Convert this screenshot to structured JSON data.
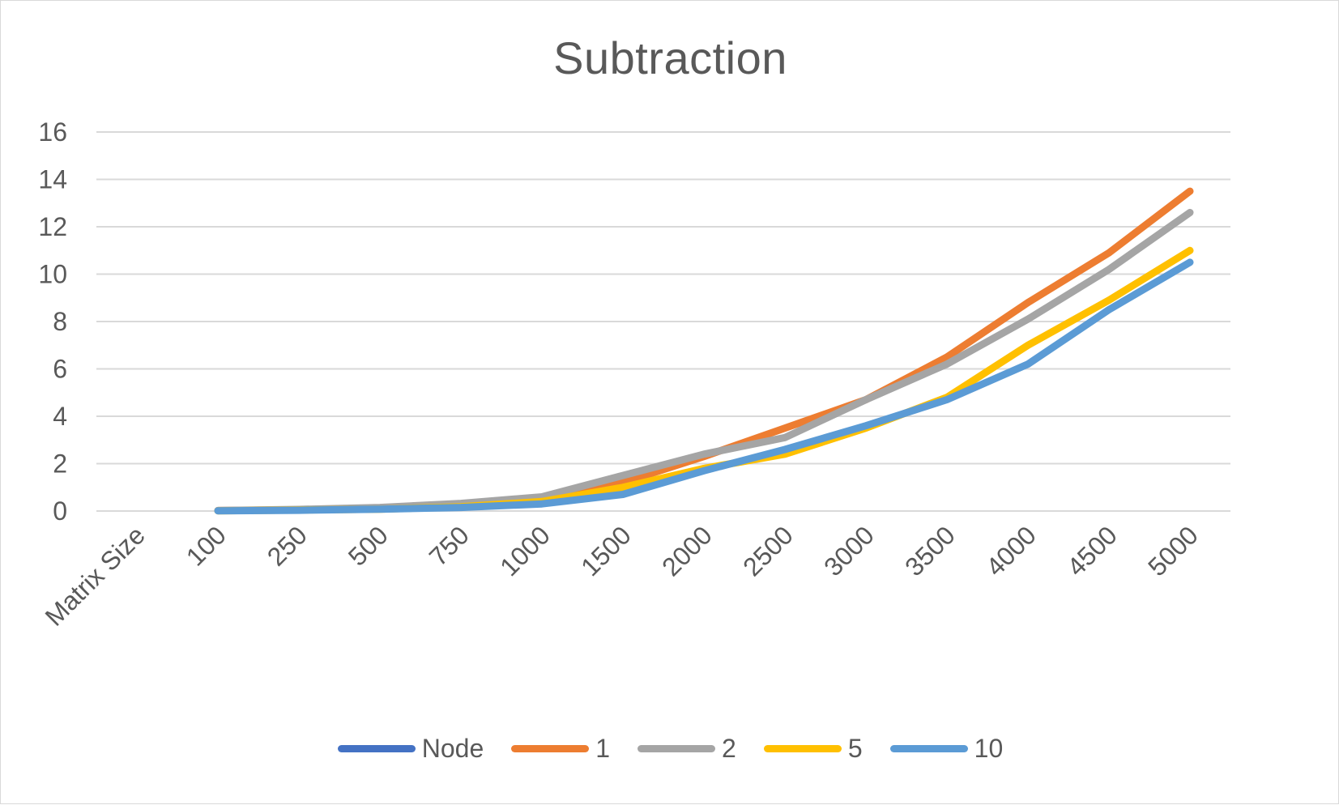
{
  "chart_data": {
    "type": "line",
    "title": "Subtraction",
    "xlabel": "",
    "ylabel": "",
    "categories": [
      "Matrix Size",
      "100",
      "250",
      "500",
      "750",
      "1000",
      "1500",
      "2000",
      "2500",
      "3000",
      "3500",
      "4000",
      "4500",
      "5000"
    ],
    "ylim": [
      0,
      16
    ],
    "yticks": [
      0,
      2,
      4,
      6,
      8,
      10,
      12,
      14,
      16
    ],
    "grid": true,
    "legend_position": "bottom",
    "series": [
      {
        "name": "Node",
        "color": "#4472c4",
        "values": [
          null,
          null,
          null,
          null,
          null,
          null,
          null,
          null,
          null,
          null,
          null,
          null,
          null,
          null
        ]
      },
      {
        "name": "1",
        "color": "#ed7d31",
        "values": [
          null,
          0.02,
          0.05,
          0.12,
          0.25,
          0.4,
          1.2,
          2.3,
          3.5,
          4.7,
          6.5,
          8.8,
          10.9,
          13.5
        ]
      },
      {
        "name": "2",
        "color": "#a5a5a5",
        "values": [
          null,
          0.02,
          0.07,
          0.15,
          0.32,
          0.6,
          1.5,
          2.4,
          3.1,
          4.7,
          6.2,
          8.1,
          10.2,
          12.6
        ]
      },
      {
        "name": "5",
        "color": "#ffc000",
        "values": [
          null,
          0.01,
          0.04,
          0.08,
          0.18,
          0.4,
          1.0,
          1.8,
          2.4,
          3.5,
          4.8,
          7.0,
          8.9,
          11.0
        ]
      },
      {
        "name": "10",
        "color": "#5b9bd5",
        "values": [
          null,
          0.01,
          0.03,
          0.08,
          0.15,
          0.3,
          0.7,
          1.7,
          2.6,
          3.6,
          4.7,
          6.2,
          8.5,
          10.5
        ]
      }
    ]
  }
}
